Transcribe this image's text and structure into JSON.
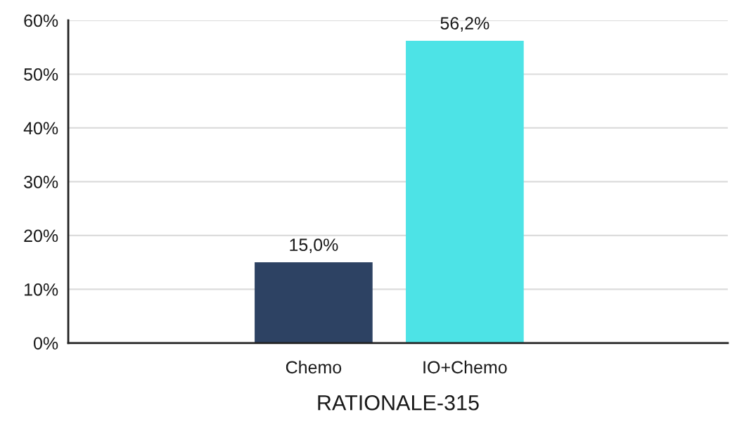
{
  "chart_data": {
    "type": "bar",
    "categories": [
      "Chemo",
      "IO+Chemo"
    ],
    "values": [
      15.0,
      56.2
    ],
    "colors": [
      "#2d4263",
      "#4de3e6"
    ],
    "value_labels": [
      "15,0%",
      "56,2%"
    ],
    "xlabel": "RATIONALE-315",
    "ylim": [
      0,
      60
    ],
    "yticks": [
      {
        "value": 0,
        "label": "0%"
      },
      {
        "value": 10,
        "label": "10%"
      },
      {
        "value": 20,
        "label": "20%"
      },
      {
        "value": 30,
        "label": "30%"
      },
      {
        "value": 40,
        "label": "40%"
      },
      {
        "value": 50,
        "label": "50%"
      },
      {
        "value": 60,
        "label": "60%"
      }
    ],
    "grid": "y"
  }
}
